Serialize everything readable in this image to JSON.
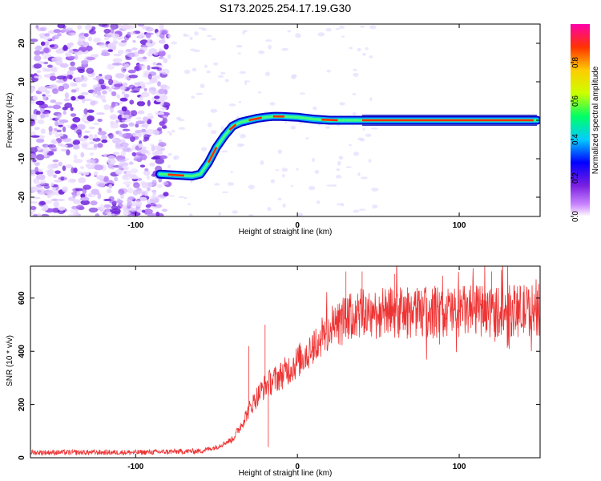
{
  "title": "S173.2025.254.17.19.G30",
  "chart_data": [
    {
      "type": "heatmap",
      "name": "spectrogram",
      "xlabel": "Height of straight line (km)",
      "ylabel": "Frequency (Hz)",
      "xlim": [
        -165,
        150
      ],
      "ylim": [
        -25,
        25
      ],
      "xticks": [
        -100,
        0,
        100
      ],
      "yticks": [
        -20,
        -10,
        0,
        10,
        20
      ],
      "colorbar": {
        "label": "Normalized spectral amplitude",
        "range": [
          0,
          1
        ],
        "ticks": [
          "0.0",
          "0.2",
          "0.4",
          "0.6",
          "0.8"
        ],
        "tick_values": [
          0,
          0.2,
          0.4,
          0.6,
          0.8
        ],
        "colors": [
          "#ffffff",
          "#cc88ff",
          "#7a1fe0",
          "#0000ff",
          "#00ccff",
          "#00ff66",
          "#ccff00",
          "#ffcc00",
          "#ff3300",
          "#ff00aa"
        ]
      },
      "ridge": {
        "description": "dominant frequency vs height",
        "x": [
          -85,
          -65,
          -60,
          -55,
          -50,
          -45,
          -40,
          -35,
          -30,
          -25,
          -20,
          -15,
          -10,
          0,
          10,
          20,
          40,
          80,
          120,
          148
        ],
        "y": [
          -14,
          -14.5,
          -14,
          -11,
          -7,
          -4,
          -1.5,
          -0.5,
          0,
          0.5,
          0.8,
          1,
          1,
          0.8,
          0.3,
          0,
          0,
          0,
          0,
          0
        ]
      }
    },
    {
      "type": "line",
      "name": "snr",
      "xlabel": "Height of straight line (km)",
      "ylabel": "SNR (10 * v/v)",
      "xlim": [
        -165,
        150
      ],
      "ylim": [
        0,
        720
      ],
      "xticks": [
        -100,
        0,
        100
      ],
      "yticks": [
        0,
        200,
        400,
        600
      ],
      "color": "#ee3333",
      "envelope": {
        "x": [
          -165,
          -100,
          -60,
          -50,
          -40,
          -35,
          -30,
          -25,
          -20,
          -10,
          0,
          10,
          20,
          30,
          40,
          60,
          80,
          100,
          120,
          150
        ],
        "y": [
          20,
          20,
          25,
          40,
          70,
          120,
          180,
          230,
          270,
          310,
          360,
          420,
          480,
          520,
          540,
          545,
          545,
          550,
          550,
          555
        ]
      },
      "spikes": [
        [
          -30,
          420
        ],
        [
          -20,
          500
        ],
        [
          -18,
          40
        ],
        [
          30,
          700
        ],
        [
          40,
          700
        ],
        [
          60,
          690
        ],
        [
          120,
          700
        ]
      ]
    }
  ]
}
